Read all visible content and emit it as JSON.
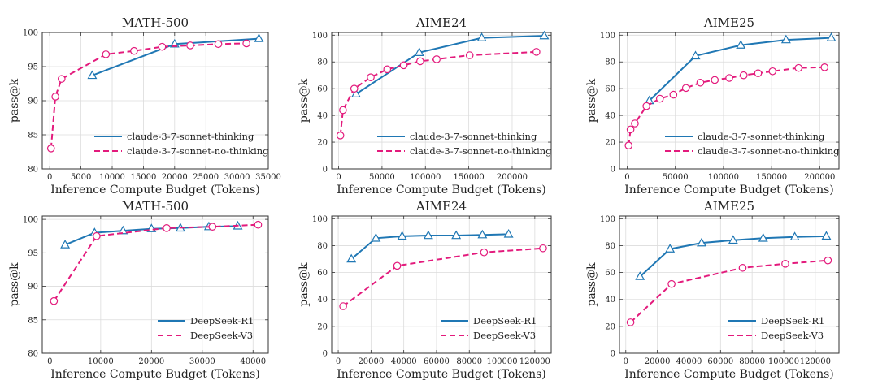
{
  "figure": {
    "colors": {
      "solid": "#1f77b4",
      "dashed": "#e31a7c",
      "grid": "#dcdcdc",
      "axis": "#333333"
    }
  },
  "chart_data": [
    {
      "type": "line",
      "title": "MATH-500",
      "xlabel": "Inference Compute Budget (Tokens)",
      "ylabel": "pass@k",
      "xlim": [
        -1200,
        35000
      ],
      "ylim": [
        80,
        100
      ],
      "xticks": [
        0,
        5000,
        10000,
        15000,
        20000,
        25000,
        30000,
        35000
      ],
      "xtick_labels": [
        "0",
        "5000",
        "10000",
        "15000",
        "20000",
        "25000",
        "30000",
        "35000"
      ],
      "yticks": [
        80,
        85,
        90,
        95,
        100
      ],
      "ytick_labels": [
        "80",
        "85",
        "90",
        "95",
        "100"
      ],
      "legend": {
        "position": "bottom-right"
      },
      "series": [
        {
          "name": "claude-3-7-sonnet-thinking",
          "style": "solid",
          "marker": "triangle",
          "x": [
            6800,
            20000,
            33500
          ],
          "y": [
            93.7,
            98.3,
            99.1
          ]
        },
        {
          "name": "claude-3-7-sonnet-no-thinking",
          "style": "dashed",
          "marker": "circle",
          "x": [
            200,
            900,
            1900,
            9000,
            13500,
            18000,
            22500,
            27000,
            31500
          ],
          "y": [
            83.0,
            90.6,
            93.2,
            96.8,
            97.3,
            97.9,
            98.1,
            98.3,
            98.4
          ]
        }
      ]
    },
    {
      "type": "line",
      "title": "AIME24",
      "xlabel": "Inference Compute Budget (Tokens)",
      "ylabel": "pass@k",
      "xlim": [
        -8000,
        245000
      ],
      "ylim": [
        0,
        102
      ],
      "xticks": [
        0,
        50000,
        100000,
        150000,
        200000
      ],
      "xtick_labels": [
        "0",
        "50000",
        "100000",
        "150000",
        "200000"
      ],
      "yticks": [
        0,
        20,
        40,
        60,
        80,
        100
      ],
      "ytick_labels": [
        "0",
        "20",
        "40",
        "60",
        "80",
        "100"
      ],
      "legend": {
        "position": "bottom-right"
      },
      "series": [
        {
          "name": "claude-3-7-sonnet-thinking",
          "style": "solid",
          "marker": "triangle",
          "x": [
            20000,
            93000,
            165000,
            237000
          ],
          "y": [
            56,
            87,
            98,
            99.5
          ]
        },
        {
          "name": "claude-3-7-sonnet-no-thinking",
          "style": "dashed",
          "marker": "circle",
          "x": [
            2000,
            5000,
            18000,
            37000,
            56000,
            75000,
            94000,
            113000,
            151000,
            228000
          ],
          "y": [
            25,
            44,
            60,
            68.5,
            74.5,
            77.5,
            80.5,
            82,
            85,
            87.5
          ]
        }
      ]
    },
    {
      "type": "line",
      "title": "AIME25",
      "xlabel": "Inference Compute Budget (Tokens)",
      "ylabel": "pass@k",
      "xlim": [
        -8000,
        220000
      ],
      "ylim": [
        0,
        102
      ],
      "xticks": [
        0,
        50000,
        100000,
        150000,
        200000
      ],
      "xtick_labels": [
        "0",
        "50000",
        "100000",
        "150000",
        "200000"
      ],
      "yticks": [
        0,
        20,
        40,
        60,
        80,
        100
      ],
      "ytick_labels": [
        "0",
        "20",
        "40",
        "60",
        "80",
        "100"
      ],
      "legend": {
        "position": "bottom-right"
      },
      "series": [
        {
          "name": "claude-3-7-sonnet-thinking",
          "style": "solid",
          "marker": "triangle",
          "x": [
            23000,
            71000,
            118000,
            165000,
            212000
          ],
          "y": [
            51,
            84.5,
            92.5,
            96.5,
            98
          ]
        },
        {
          "name": "claude-3-7-sonnet-no-thinking",
          "style": "dashed",
          "marker": "circle",
          "x": [
            1500,
            3500,
            8000,
            20000,
            34000,
            48000,
            61000,
            76000,
            91000,
            106000,
            121000,
            136000,
            151000,
            178000,
            205000
          ],
          "y": [
            17.5,
            29.5,
            34,
            47,
            52.5,
            55.5,
            60.5,
            64.5,
            66.5,
            68,
            70,
            71.5,
            73,
            75.5,
            76
          ]
        }
      ]
    },
    {
      "type": "line",
      "title": "MATH-500",
      "xlabel": "Inference Compute Budget (Tokens)",
      "ylabel": "pass@k",
      "xlim": [
        -1500,
        43000
      ],
      "ylim": [
        80,
        100.5
      ],
      "xticks": [
        0,
        10000,
        20000,
        30000,
        40000
      ],
      "xtick_labels": [
        "0",
        "10000",
        "20000",
        "30000",
        "40000"
      ],
      "yticks": [
        80,
        85,
        90,
        95,
        100
      ],
      "ytick_labels": [
        "80",
        "85",
        "90",
        "95",
        "100"
      ],
      "legend": {
        "position": "bottom-right"
      },
      "series": [
        {
          "name": "DeepSeek-R1",
          "style": "solid",
          "marker": "triangle",
          "x": [
            3000,
            8800,
            14400,
            20000,
            25700,
            31300,
            37000
          ],
          "y": [
            96.2,
            98.0,
            98.3,
            98.6,
            98.7,
            98.9,
            99.0
          ]
        },
        {
          "name": "DeepSeek-V3",
          "style": "dashed",
          "marker": "circle",
          "x": [
            800,
            9200,
            23000,
            32000,
            41000
          ],
          "y": [
            87.8,
            97.5,
            98.7,
            98.9,
            99.2
          ]
        }
      ]
    },
    {
      "type": "line",
      "title": "AIME24",
      "xlabel": "Inference Compute Budget (Tokens)",
      "ylabel": "pass@k",
      "xlim": [
        -4000,
        130000
      ],
      "ylim": [
        0,
        102
      ],
      "xticks": [
        0,
        20000,
        40000,
        60000,
        80000,
        100000,
        120000
      ],
      "xtick_labels": [
        "0",
        "20000",
        "40000",
        "60000",
        "80000",
        "100000",
        "120000"
      ],
      "yticks": [
        0,
        20,
        40,
        60,
        80,
        100
      ],
      "ytick_labels": [
        "0",
        "20",
        "40",
        "60",
        "80",
        "100"
      ],
      "legend": {
        "position": "bottom-right"
      },
      "series": [
        {
          "name": "DeepSeek-R1",
          "style": "solid",
          "marker": "triangle",
          "x": [
            8000,
            23000,
            39000,
            55000,
            72000,
            88000,
            104000
          ],
          "y": [
            70,
            85.5,
            87,
            87.5,
            87.5,
            88,
            88.5
          ]
        },
        {
          "name": "DeepSeek-V3",
          "style": "dashed",
          "marker": "circle",
          "x": [
            3000,
            36000,
            89000,
            125000
          ],
          "y": [
            35,
            65,
            75,
            78
          ]
        }
      ]
    },
    {
      "type": "line",
      "title": "AIME25",
      "xlabel": "Inference Compute Budget (Tokens)",
      "ylabel": "pass@k",
      "xlim": [
        -4000,
        135000
      ],
      "ylim": [
        0,
        102
      ],
      "xticks": [
        0,
        20000,
        40000,
        60000,
        80000,
        100000,
        120000
      ],
      "xtick_labels": [
        "0",
        "20000",
        "40000",
        "60000",
        "80000",
        "100000",
        "120000"
      ],
      "yticks": [
        0,
        20,
        40,
        60,
        80,
        100
      ],
      "ytick_labels": [
        "0",
        "20",
        "40",
        "60",
        "80",
        "100"
      ],
      "legend": {
        "position": "bottom-right"
      },
      "series": [
        {
          "name": "DeepSeek-R1",
          "style": "solid",
          "marker": "triangle",
          "x": [
            9000,
            28000,
            48000,
            68000,
            87000,
            107000,
            127000
          ],
          "y": [
            57,
            77.5,
            82,
            84,
            85.5,
            86.5,
            87
          ]
        },
        {
          "name": "DeepSeek-V3",
          "style": "dashed",
          "marker": "circle",
          "x": [
            3000,
            29000,
            74000,
            101000,
            128000
          ],
          "y": [
            23,
            51.5,
            63.5,
            66.5,
            69
          ]
        }
      ]
    }
  ]
}
